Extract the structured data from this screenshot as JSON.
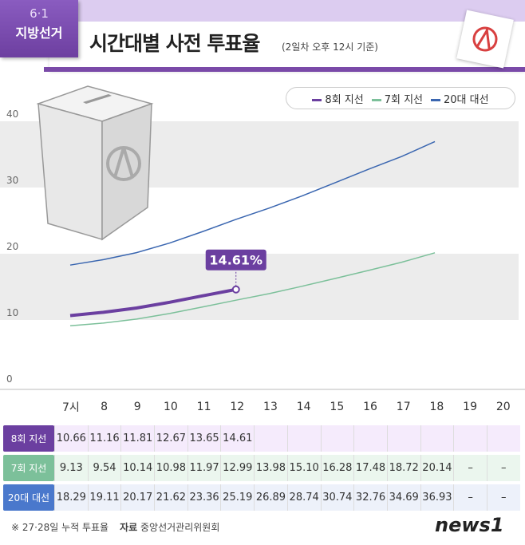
{
  "header": {
    "date": "6·1",
    "badge": "지방선거",
    "title": "시간대별 사전 투표율",
    "subtitle": "(2일차 오후 12시 기준)"
  },
  "legend": [
    "8회 지선",
    "7회 지선",
    "20대 대선"
  ],
  "chart_data": {
    "type": "line",
    "categories": [
      "7시",
      "8",
      "9",
      "10",
      "11",
      "12",
      "13",
      "14",
      "15",
      "16",
      "17",
      "18",
      "19",
      "20"
    ],
    "yticks": [
      "0",
      "10",
      "20",
      "30",
      "40"
    ],
    "ylim": [
      0,
      40
    ],
    "series": [
      {
        "name": "8회 지선",
        "color": "#6b3fa0",
        "values": [
          10.66,
          11.16,
          11.81,
          12.67,
          13.65,
          14.61,
          null,
          null,
          null,
          null,
          null,
          null,
          null,
          null
        ]
      },
      {
        "name": "7회 지선",
        "color": "#7cc09a",
        "values": [
          9.13,
          9.54,
          10.14,
          10.98,
          11.97,
          12.99,
          13.98,
          15.1,
          16.28,
          17.48,
          18.72,
          20.14,
          null,
          null
        ]
      },
      {
        "name": "20대 대선",
        "color": "#3a66b0",
        "values": [
          18.29,
          19.11,
          20.17,
          21.62,
          23.36,
          25.19,
          26.89,
          28.74,
          30.74,
          32.76,
          34.69,
          36.93,
          null,
          null
        ]
      }
    ],
    "annotation": "14.61%"
  },
  "table": {
    "rows": [
      {
        "label": "8회 지선",
        "cells": [
          "10.66",
          "11.16",
          "11.81",
          "12.67",
          "13.65",
          "14.61",
          "",
          "",
          "",
          "",
          "",
          "",
          "",
          ""
        ]
      },
      {
        "label": "7회 지선",
        "cells": [
          "9.13",
          "9.54",
          "10.14",
          "10.98",
          "11.97",
          "12.99",
          "13.98",
          "15.10",
          "16.28",
          "17.48",
          "18.72",
          "20.14",
          "–",
          "–"
        ]
      },
      {
        "label": "20대 대선",
        "cells": [
          "18.29",
          "19.11",
          "20.17",
          "21.62",
          "23.36",
          "25.19",
          "26.89",
          "28.74",
          "30.74",
          "32.76",
          "34.69",
          "36.93",
          "–",
          "–"
        ]
      }
    ]
  },
  "footer": {
    "note": "※ 27·28일 누적 투표율",
    "source_label": "자료",
    "source": "중앙선거관리위원회"
  },
  "logo": "news1"
}
